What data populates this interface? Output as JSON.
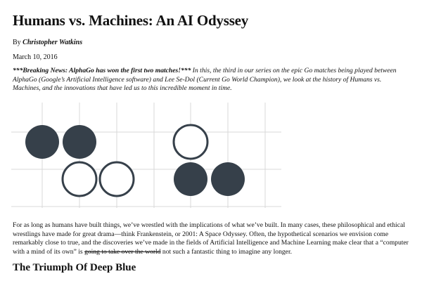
{
  "article": {
    "title": "Humans vs. Machines: An AI Odyssey",
    "byline_prefix": "By ",
    "author": "Christopher Watkins",
    "date": "March 10, 2016",
    "intro_breaking": "***Breaking News: AlphaGo has won the first two matches!***",
    "intro_rest": " In this, the third in our series on the epic Go matches being played between AlphaGo (Google’s Artificial Intelligence software) and Lee Se-Dol (Current Go World Champion), we look at the history of Humans vs. Machines, and the innovations that have led us to this incredible moment in time.",
    "body_part1": "For as long as humans have built things, we’ve wrestled with the implications of what we’ve built. In many cases, these philosophical and ethical wrestlings have made for great drama—think Frankenstein, or 2001: A Space Odyssey. Often, the hypothetical scenarios we envision come remarkably close to true, and the discoveries we’ve made in the fields of Artificial Intelligence and Machine Learning make clear that a “computer with a mind of its own” is ",
    "body_strike": "going to take over the world",
    "body_part2": " not such a fantastic thing to imagine any longer.",
    "section_heading": "The Triumph Of Deep Blue"
  },
  "go_board": {
    "colors": {
      "grid": "#d9d9d9",
      "black_stone": "#36404a",
      "white_fill": "#ffffff",
      "white_stroke": "#36404a"
    },
    "stones": [
      {
        "color": "black",
        "col": 1,
        "row": 1
      },
      {
        "color": "black",
        "col": 2,
        "row": 1
      },
      {
        "color": "white",
        "col": 2,
        "row": 2
      },
      {
        "color": "white",
        "col": 3,
        "row": 2
      },
      {
        "color": "white",
        "col": 5,
        "row": 1
      },
      {
        "color": "black",
        "col": 5,
        "row": 2
      },
      {
        "color": "black",
        "col": 6,
        "row": 2
      }
    ]
  }
}
